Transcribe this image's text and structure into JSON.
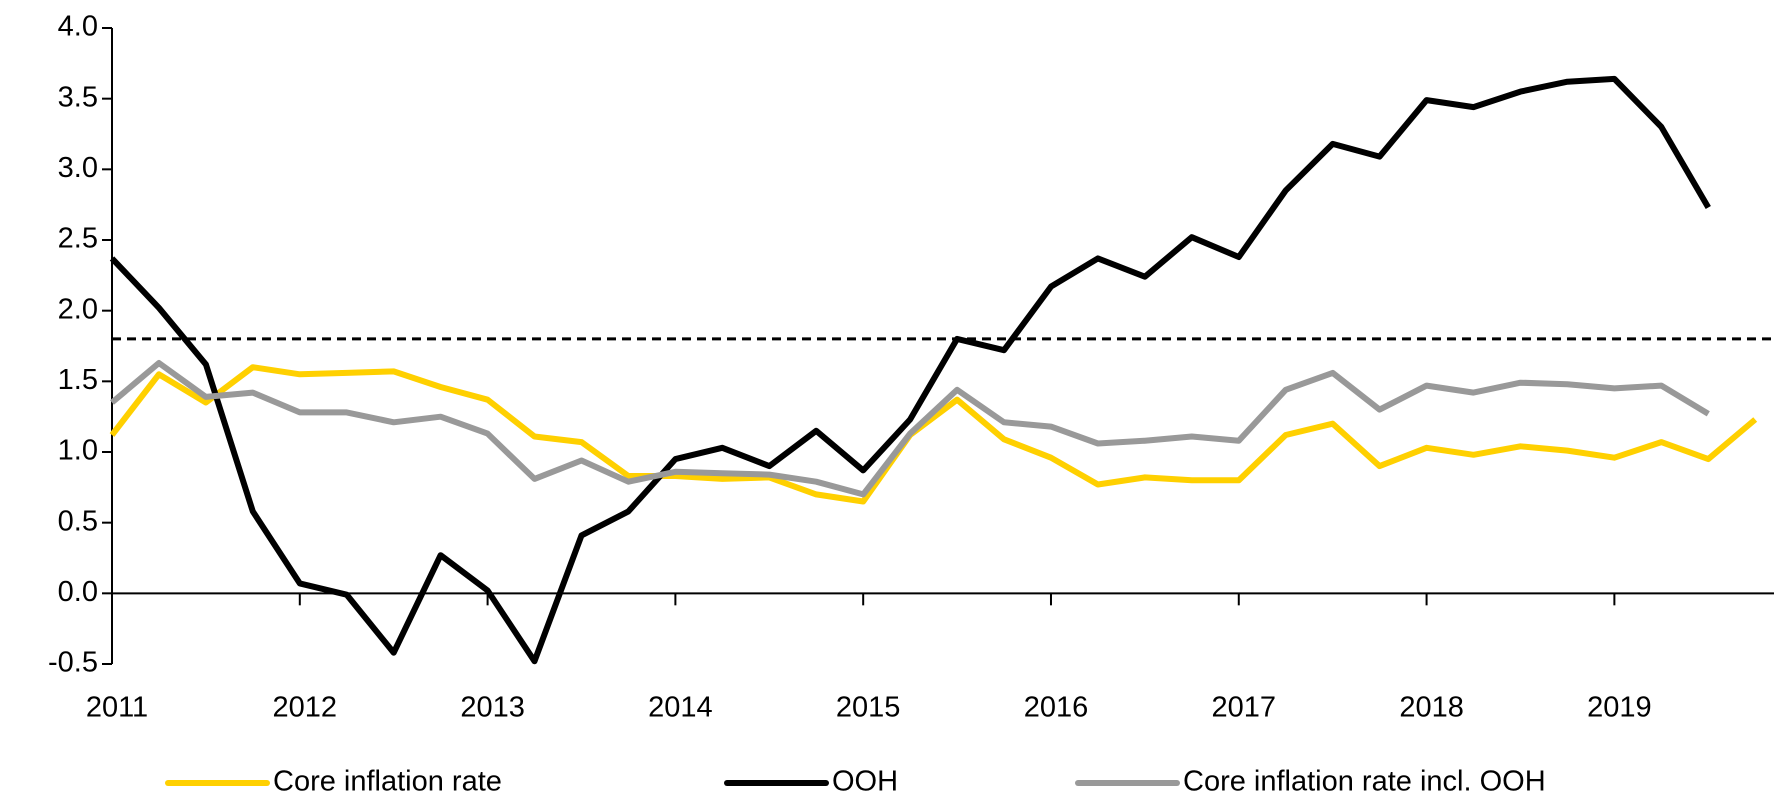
{
  "chart_data": {
    "type": "line",
    "x": [
      2011,
      2011.25,
      2011.5,
      2011.75,
      2012,
      2012.25,
      2012.5,
      2012.75,
      2013,
      2013.25,
      2013.5,
      2013.75,
      2014,
      2014.25,
      2014.5,
      2014.75,
      2015,
      2015.25,
      2015.5,
      2015.75,
      2016,
      2016.25,
      2016.5,
      2016.75,
      2017,
      2017.25,
      2017.5,
      2017.75,
      2018,
      2018.25,
      2018.5,
      2018.75,
      2019,
      2019.25,
      2019.5,
      2019.75
    ],
    "series": [
      {
        "name": "Core inflation rate",
        "color": "#ffd000",
        "values": [
          1.12,
          1.55,
          1.35,
          1.6,
          1.55,
          1.56,
          1.57,
          1.46,
          1.37,
          1.11,
          1.07,
          0.83,
          0.83,
          0.81,
          0.82,
          0.7,
          0.65,
          1.12,
          1.37,
          1.09,
          0.96,
          0.77,
          0.82,
          0.8,
          0.8,
          1.12,
          1.2,
          0.9,
          1.03,
          0.98,
          1.04,
          1.01,
          0.96,
          1.07,
          0.95,
          1.23
        ]
      },
      {
        "name": "OOH",
        "color": "#000000",
        "values": [
          2.37,
          2.02,
          1.62,
          0.58,
          0.07,
          -0.01,
          -0.42,
          0.27,
          0.02,
          -0.48,
          0.41,
          0.58,
          0.95,
          1.03,
          0.9,
          1.15,
          0.87,
          1.23,
          1.8,
          1.72,
          2.17,
          2.37,
          2.24,
          2.52,
          2.38,
          2.85,
          3.18,
          3.09,
          3.49,
          3.44,
          3.55,
          3.62,
          3.64,
          3.3,
          2.73,
          null
        ]
      },
      {
        "name": "Core inflation rate incl. OOH",
        "color": "#999999",
        "values": [
          1.35,
          1.63,
          1.39,
          1.42,
          1.28,
          1.28,
          1.21,
          1.25,
          1.13,
          0.81,
          0.94,
          0.79,
          0.86,
          0.85,
          0.84,
          0.79,
          0.7,
          1.13,
          1.44,
          1.21,
          1.18,
          1.06,
          1.08,
          1.11,
          1.08,
          1.44,
          1.56,
          1.3,
          1.47,
          1.42,
          1.49,
          1.48,
          1.45,
          1.47,
          1.27,
          null
        ]
      }
    ],
    "reference_line": 1.8,
    "xlim": [
      2011,
      2019.85
    ],
    "xticks": [
      2011,
      2012,
      2013,
      2014,
      2015,
      2016,
      2017,
      2018,
      2019
    ],
    "ylim": [
      -0.5,
      4.0
    ],
    "yticks": [
      {
        "value": -0.5,
        "label": "-0.5"
      },
      {
        "value": 0,
        "label": "0.0"
      },
      {
        "value": 0.5,
        "label": "0.5"
      },
      {
        "value": 1,
        "label": "1.0"
      },
      {
        "value": 1.5,
        "label": "1.5"
      },
      {
        "value": 2,
        "label": "2.0"
      },
      {
        "value": 2.5,
        "label": "2.5"
      },
      {
        "value": 3,
        "label": "3.0"
      },
      {
        "value": 3.5,
        "label": "3.5"
      },
      {
        "value": 4,
        "label": "4.0"
      }
    ],
    "legend": "bottom"
  }
}
